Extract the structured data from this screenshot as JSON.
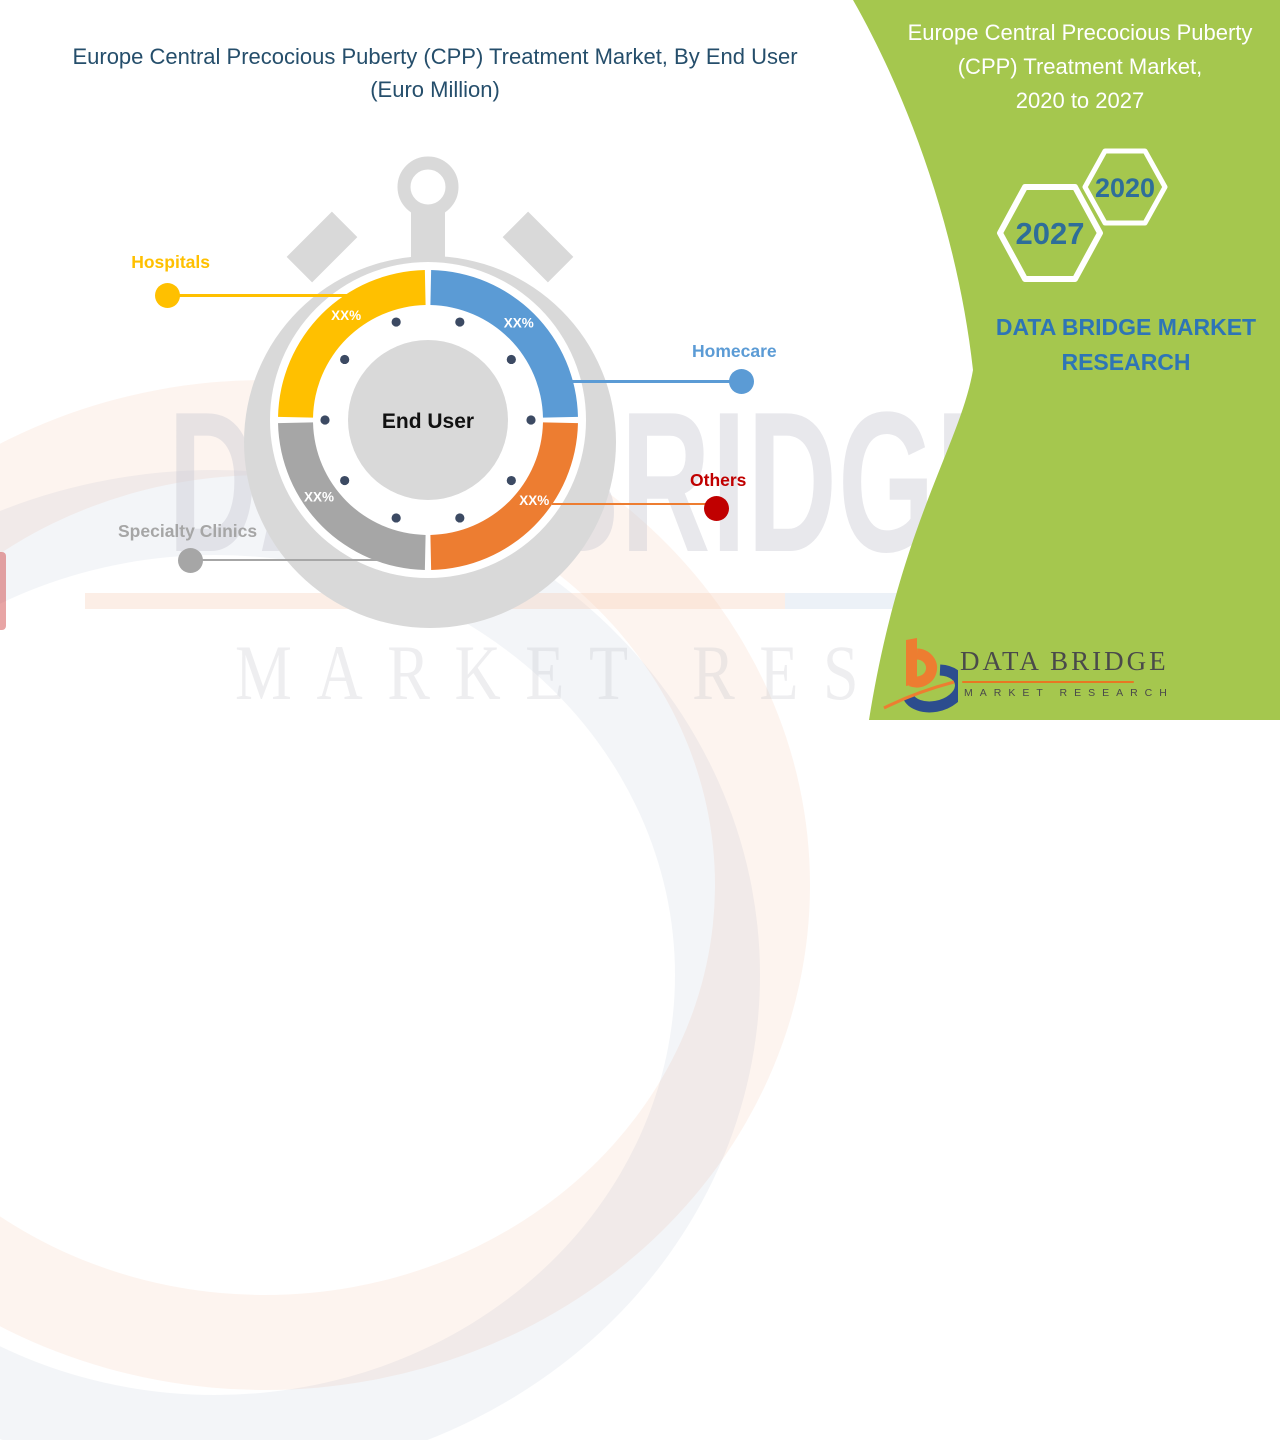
{
  "page": {
    "title_lines": [
      "Europe Central Precocious Puberty (CPP) Treatment Market, By End User",
      "(Euro Million)"
    ]
  },
  "green_panel": {
    "background_color": "#A5C74E",
    "heading_lines": [
      "Europe Central Precocious Puberty",
      "(CPP) Treatment Market,",
      "2020 to 2027"
    ],
    "year_front": "2027",
    "year_back": "2020",
    "year_text_color": "#2E6E99",
    "brand_lines": [
      "DATA BRIDGE MARKET",
      "RESEARCH"
    ],
    "brand_color": "#2E75B6"
  },
  "watermark": {
    "big_text": "DATA BRIDGE",
    "small_text": "MARKET RESEARCH"
  },
  "logo": {
    "name_text": "DATA BRIDGE",
    "sub_text": "MARKET RESEARCH",
    "orange": "#ED7D31",
    "navy": "#2C4D8E",
    "text_color": "#4A4A4A"
  },
  "chart_data": {
    "type": "pie",
    "style": "donut-stopwatch",
    "title": "Europe Central Precocious Puberty (CPP) Treatment Market, By End User (Euro Million)",
    "center_label": "End User",
    "categories": [
      "Hospitals",
      "Homecare",
      "Others",
      "Specialty Clinics"
    ],
    "values": [
      "XX%",
      "XX%",
      "XX%",
      "XX%"
    ],
    "visual_share_pct": [
      25,
      25,
      25,
      25
    ],
    "legend_position": "callout-labels",
    "segments": [
      {
        "label": "Hospitals",
        "value": "XX%",
        "color": "#FFC000",
        "label_color": "#FFC000",
        "start": 270,
        "end": 360,
        "label_angle": 322
      },
      {
        "label": "Homecare",
        "value": "XX%",
        "color": "#5B9BD5",
        "label_color": "#5B9BD5",
        "start": 0,
        "end": 90,
        "label_angle": 43
      },
      {
        "label": "Others",
        "value": "XX%",
        "color": "#ED7D31",
        "label_color": "#C00000",
        "start": 90,
        "end": 180,
        "label_angle": 127
      },
      {
        "label": "Specialty Clinics",
        "value": "XX%",
        "color": "#A6A6A6",
        "label_color": "#A6A6A6",
        "start": 180,
        "end": 270,
        "label_angle": 235
      }
    ],
    "colors": {
      "stopwatch_body": "#D9D9D9",
      "center_circle": "#D9D9D9",
      "tick_dots": "#3C4A63",
      "percent_label": "#FFFFFF",
      "center_text": "#111111"
    }
  }
}
